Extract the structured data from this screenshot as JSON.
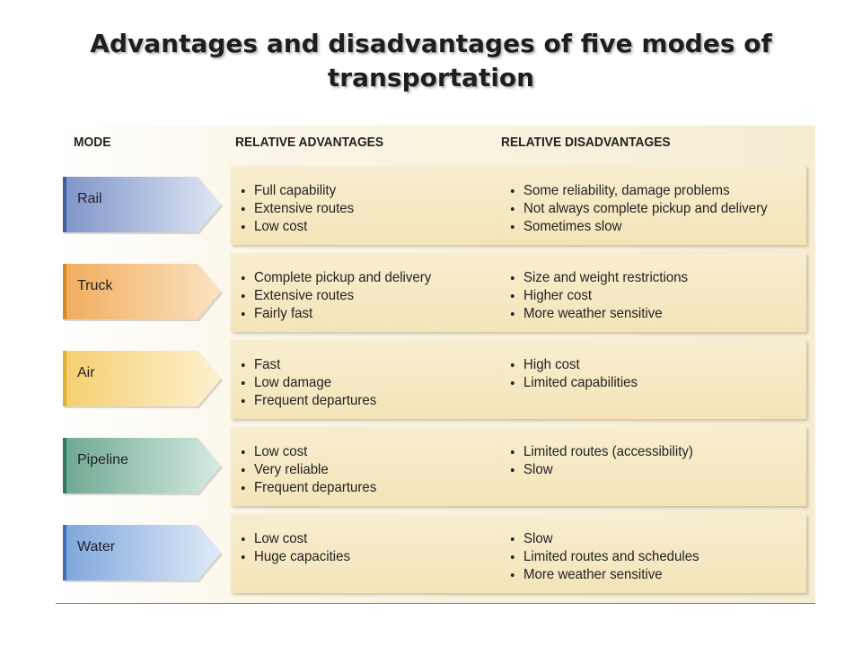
{
  "title": "Advantages and disadvantages of five modes of transportation",
  "headers": [
    "MODE",
    "RELATIVE ADVANTAGES",
    "RELATIVE DISADVANTAGES"
  ],
  "rows": [
    {
      "mode": "Rail",
      "advantages": [
        "Full capability",
        "Extensive routes",
        "Low cost"
      ],
      "disadvantages": [
        "Some reliability, damage problems",
        "Not always complete pickup and delivery",
        "Sometimes slow"
      ]
    },
    {
      "mode": "Truck",
      "advantages": [
        "Complete pickup and delivery",
        "Extensive routes",
        "Fairly fast"
      ],
      "disadvantages": [
        "Size and weight restrictions",
        "Higher cost",
        "More weather sensitive"
      ]
    },
    {
      "mode": "Air",
      "advantages": [
        "Fast",
        "Low damage",
        "Frequent departures"
      ],
      "disadvantages": [
        "High cost",
        "Limited capabilities"
      ]
    },
    {
      "mode": "Pipeline",
      "advantages": [
        "Low cost",
        "Very reliable",
        "Frequent departures"
      ],
      "disadvantages": [
        "Limited routes (accessibility)",
        "Slow"
      ]
    },
    {
      "mode": "Water",
      "advantages": [
        "Low cost",
        "Huge capacities"
      ],
      "disadvantages": [
        "Slow",
        "Limited routes and schedules",
        "More weather sensitive"
      ]
    }
  ]
}
